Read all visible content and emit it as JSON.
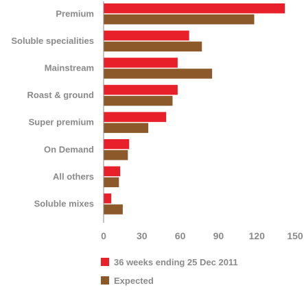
{
  "chart_data": {
    "type": "bar",
    "orientation": "horizontal",
    "categories": [
      "Premium",
      "Soluble specialities",
      "Mainstream",
      "Roast & ground",
      "Super premium",
      "On Demand",
      "All others",
      "Soluble mixes"
    ],
    "series": [
      {
        "name": "36 weeks ending 25 Dec 2011",
        "color": "#e8202a",
        "values": [
          142,
          67,
          58,
          58,
          49,
          20,
          13,
          6
        ]
      },
      {
        "name": "Expected",
        "color": "#8c5a2a",
        "values": [
          118,
          77,
          85,
          54,
          35,
          19,
          12,
          15
        ]
      }
    ],
    "xticks": [
      0,
      30,
      60,
      90,
      120,
      150
    ],
    "xlim": [
      0,
      150
    ],
    "legend_position": "bottom-left",
    "grid": false
  }
}
